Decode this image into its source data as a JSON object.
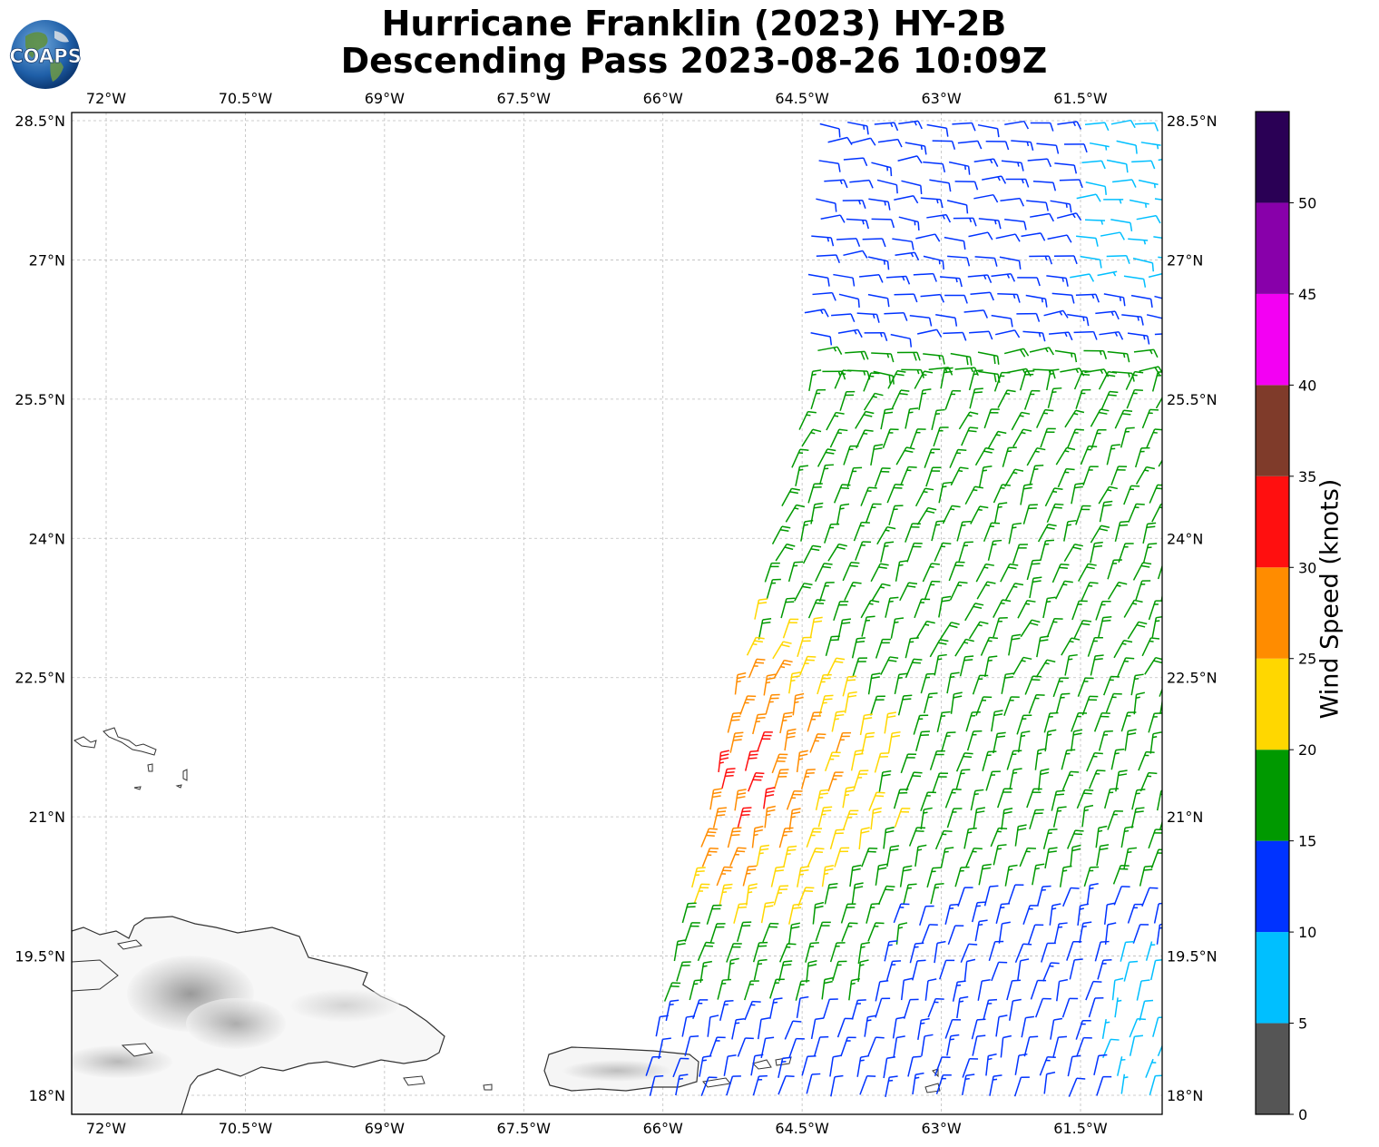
{
  "title": {
    "line1": "Hurricane Franklin (2023) HY-2B",
    "line2": "Descending Pass 2023-08-26 10:09Z"
  },
  "logo": {
    "text": "COAPS"
  },
  "map": {
    "lon_ticks": [
      "72°W",
      "70.5°W",
      "69°W",
      "67.5°W",
      "66°W",
      "64.5°W",
      "63°W",
      "61.5°W"
    ],
    "lat_ticks": [
      "28.5°N",
      "27°N",
      "25.5°N",
      "24°N",
      "22.5°N",
      "21°N",
      "19.5°N",
      "18°N"
    ],
    "lon_range": [
      -72.4,
      -60.6
    ],
    "lat_range": [
      17.8,
      28.6
    ],
    "gridlines": true,
    "land_features": [
      "Hispaniola",
      "Puerto Rico",
      "Turks and Caicos Islands",
      "Virgin Islands"
    ],
    "wind_barbs": {
      "field": "Wind Speed (knots)",
      "swath_lon_range": [
        -66.2,
        -60.6
      ],
      "max_speed_region": "near 21N 66W (30-35 knots)"
    }
  },
  "colorbar": {
    "label": "Wind Speed (knots)",
    "tick_labels": [
      "0",
      "5",
      "10",
      "15",
      "20",
      "25",
      "30",
      "35",
      "40",
      "45",
      "50"
    ],
    "bins": [
      {
        "from": 0,
        "to": 5,
        "color": "#555555"
      },
      {
        "from": 5,
        "to": 10,
        "color": "#00bfff"
      },
      {
        "from": 10,
        "to": 15,
        "color": "#0033ff"
      },
      {
        "from": 15,
        "to": 20,
        "color": "#009900"
      },
      {
        "from": 20,
        "to": 25,
        "color": "#ffd700"
      },
      {
        "from": 25,
        "to": 30,
        "color": "#ff8c00"
      },
      {
        "from": 30,
        "to": 35,
        "color": "#ff0f0f"
      },
      {
        "from": 35,
        "to": 40,
        "color": "#7f3b2a"
      },
      {
        "from": 40,
        "to": 45,
        "color": "#f300f3"
      },
      {
        "from": 45,
        "to": 50,
        "color": "#8800aa"
      },
      {
        "from": 50,
        "to": 55,
        "color": "#2a0055"
      }
    ]
  }
}
